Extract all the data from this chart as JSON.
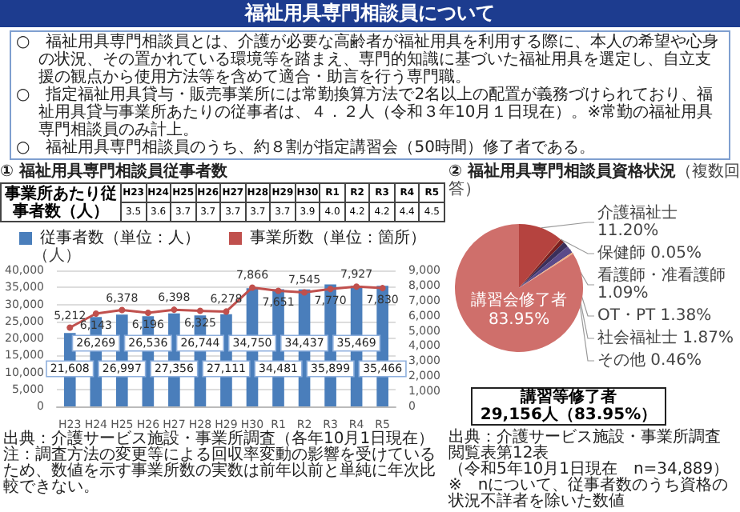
{
  "chart_data": [
    {
      "type": "other",
      "title": "福祉用具専門相談員について",
      "annotations": [
        "○　福祉用具専門相談員とは、介護が必要な高齢者が福祉用具を利用する際に、本人の希望や心身の状況、その置かれている環境等を踏まえ、専門的知識に基づいた福祉用具を選定し、自立支援の観点から使用方法等を含めて適合・助言を行う専門職。",
        "○　指定福祉用具貸与・販売事業所には常勤換算方法で2名以上の配置が義務づけられており、福祉用具貸与事業所あたりの従事者は、４．２人（令和３年10月１日現在）。※常勤の福祉用具専門相談員のみ計上。",
        "○　福祉用具専門相談員のうち、約８割が指定講習会（50時間）修了者である。"
      ]
    },
    {
      "type": "other",
      "title": "① 福祉用具専門相談員従事者数",
      "categories": [
        "H23",
        "H24",
        "H25",
        "H26",
        "H27",
        "H28",
        "H29",
        "H30",
        "R1",
        "R2",
        "R3",
        "R4",
        "R5"
      ],
      "series": [
        {
          "name": "事業所あたり従事者数（人）",
          "values": [
            3.5,
            3.6,
            3.7,
            3.7,
            3.7,
            3.7,
            3.7,
            3.9,
            4.0,
            4.2,
            4.2,
            4.4,
            4.5
          ],
          "value_labels": [
            "3.5",
            "3.6",
            "3.7",
            "3.7",
            "3.7",
            "3.7",
            "3.7",
            "3.9",
            "4.0",
            "4.2",
            "4.2",
            "4.4",
            "4.5"
          ]
        }
      ]
    },
    {
      "type": "bar",
      "categories": [
        "H23",
        "H24",
        "H25",
        "H26",
        "H27",
        "H28",
        "H29",
        "H30",
        "R1",
        "R2",
        "R3",
        "R4",
        "R5"
      ],
      "ylabel": "（人）",
      "ylim": [
        0,
        40000
      ],
      "yticks": [
        0,
        {
          "value": 5000,
          "label": "5,000"
        },
        {
          "value": 10000,
          "label": "10,000"
        },
        {
          "value": 15000,
          "label": "15,000"
        },
        {
          "value": 20000,
          "label": "20,000"
        },
        {
          "value": 25000,
          "label": "25,000"
        },
        {
          "value": 30000,
          "label": "30,000"
        },
        {
          "value": 35000,
          "label": "35,000"
        },
        {
          "value": 40000,
          "label": "40,000"
        }
      ],
      "y2lim": [
        0,
        9000
      ],
      "y2ticks": [
        0,
        {
          "value": 1000,
          "label": "1,000"
        },
        {
          "value": 2000,
          "label": "2,000"
        },
        {
          "value": 3000,
          "label": "3,000"
        },
        {
          "value": 4000,
          "label": "4,000"
        },
        {
          "value": 5000,
          "label": "5,000"
        },
        {
          "value": 6000,
          "label": "6,000"
        },
        {
          "value": 7000,
          "label": "7,000"
        },
        {
          "value": 8000,
          "label": "8,000"
        },
        {
          "value": 9000,
          "label": "9,000"
        }
      ],
      "series": [
        {
          "name": "従事者数（単位：人）",
          "color": "#4a7ebb",
          "values": [
            21608,
            26269,
            26997,
            26536,
            27356,
            26744,
            27111,
            34750,
            34481,
            34437,
            35899,
            35469,
            35466
          ],
          "value_labels": [
            "21,608",
            "26,269",
            "26,997",
            "26,536",
            "27,356",
            "26,744",
            "27,111",
            "34,750",
            "34,481",
            "34,437",
            "35,899",
            "35,469",
            "35,466"
          ]
        },
        {
          "name": "事業所数（単位：箇所）",
          "type": "line",
          "axis": "y2",
          "color": "#c0504d",
          "values": [
            5212,
            6143,
            6378,
            6196,
            6398,
            6325,
            6278,
            7866,
            7651,
            7545,
            7770,
            7927,
            7830
          ],
          "value_labels": [
            "5,212",
            "6,143",
            "6,378",
            "6,196",
            "6,398",
            "6,325",
            "6,278",
            "7,866",
            "7,651",
            "7,545",
            "7,770",
            "7,927",
            "7,830"
          ]
        }
      ],
      "legend": "top",
      "grid": "y",
      "marker": "circle",
      "line_style": "solid",
      "annotations": [
        "出典：介護サービス施設・事業所調査（各年10月1日現在）",
        "注：調査方法の変更等による回収率変動の影響を受けているため、数値を示す事業所数の実数は前年以前と単純に年次比較できない。"
      ]
    },
    {
      "type": "pie",
      "title": "② 福祉用具専門相談員資格状況",
      "subtitle": "（複数回答）",
      "categories": [
        "介護福祉士",
        "保健師",
        "看護師・准看護師",
        "OT・PT",
        "社会福祉士",
        "その他",
        "講習会修了者"
      ],
      "values": [
        11.2,
        0.05,
        1.09,
        1.38,
        1.87,
        0.46,
        83.95
      ],
      "value_labels": [
        "11.20%",
        "0.05%",
        "1.09%",
        "1.38%",
        "1.87%",
        "0.46%",
        "83.95%"
      ],
      "colors": [
        "#b5433f",
        "#f0a030",
        "#7b2020",
        "#3a2f5a",
        "#5b4b8a",
        "#f4b183",
        "#cf6f6b"
      ],
      "data_labels": true,
      "annotations": [
        "講習等修了者\n29,156人（83.95%）",
        "出典：介護サービス施設・事業所調査",
        "閲覧表第12表",
        "（令和5年10月1日現在　n=34,889）",
        "※　nについて、従事者数のうち資格の状況不詳者を除いた数値"
      ]
    }
  ]
}
